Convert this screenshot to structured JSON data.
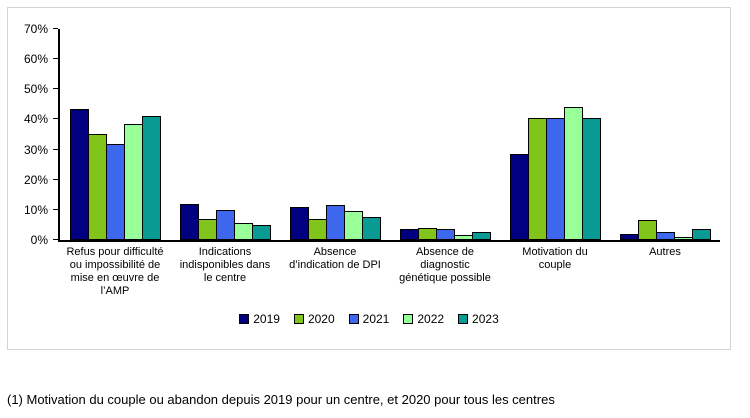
{
  "chart_data": {
    "type": "bar",
    "title": "",
    "xlabel": "",
    "ylabel": "",
    "ylim": [
      0,
      70
    ],
    "yticks": [
      0,
      10,
      20,
      30,
      40,
      50,
      60,
      70
    ],
    "ytick_suffix": "%",
    "grid": false,
    "legend_position": "bottom",
    "categories": [
      "Refus pour difficulté\nou impossibilité de\nmise en œuvre de\nl’AMP",
      "Indications\nindisponibles dans\nle centre",
      "Absence\nd’indication de DPI",
      "Absence de\ndiagnostic\ngénétique possible",
      "Motivation du\ncouple",
      "Autres"
    ],
    "series": [
      {
        "name": "2019",
        "color": "#000080",
        "values": [
          43.5,
          12,
          11,
          3.5,
          28.5,
          2
        ]
      },
      {
        "name": "2020",
        "color": "#80C41C",
        "values": [
          35,
          7,
          7,
          4,
          40.5,
          6.5
        ]
      },
      {
        "name": "2021",
        "color": "#3D68EE",
        "values": [
          32,
          10,
          11.5,
          3.5,
          40.5,
          2.5
        ]
      },
      {
        "name": "2022",
        "color": "#99FF99",
        "values": [
          38.5,
          5.5,
          9.5,
          1.5,
          44,
          1
        ]
      },
      {
        "name": "2023",
        "color": "#0A9A94",
        "values": [
          41,
          5,
          7.5,
          2.5,
          40.5,
          3.5
        ]
      }
    ]
  },
  "footnote": "(1) Motivation du couple ou abandon depuis 2019 pour un centre, et 2020 pour tous les centres"
}
